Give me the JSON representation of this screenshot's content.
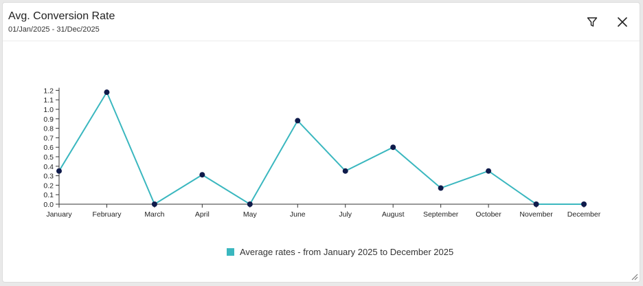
{
  "header": {
    "title": "Avg. Conversion Rate",
    "subtitle": "01/Jan/2025 - 31/Dec/2025",
    "filter_icon": "filter-icon",
    "close_icon": "close-icon"
  },
  "legend": {
    "label": "Average rates - from January 2025 to December 2025"
  },
  "colors": {
    "line": "#3ab7bf",
    "point": "#0f1b4b",
    "axis": "#333333"
  },
  "chart_data": {
    "type": "line",
    "categories": [
      "January",
      "February",
      "March",
      "April",
      "May",
      "June",
      "July",
      "August",
      "September",
      "October",
      "November",
      "December"
    ],
    "series": [
      {
        "name": "Average rates - from January 2025 to December 2025",
        "values": [
          0.35,
          1.18,
          0.0,
          0.31,
          0.0,
          0.88,
          0.35,
          0.6,
          0.17,
          0.35,
          0.0,
          0.0
        ]
      }
    ],
    "yticks": [
      "0.0",
      "0.1",
      "0.2",
      "0.3",
      "0.4",
      "0.5",
      "0.6",
      "0.7",
      "0.8",
      "0.9",
      "1.0",
      "1.1",
      "1.2"
    ],
    "ylim": [
      0,
      1.3
    ],
    "grid": false,
    "legend_position": "bottom"
  }
}
